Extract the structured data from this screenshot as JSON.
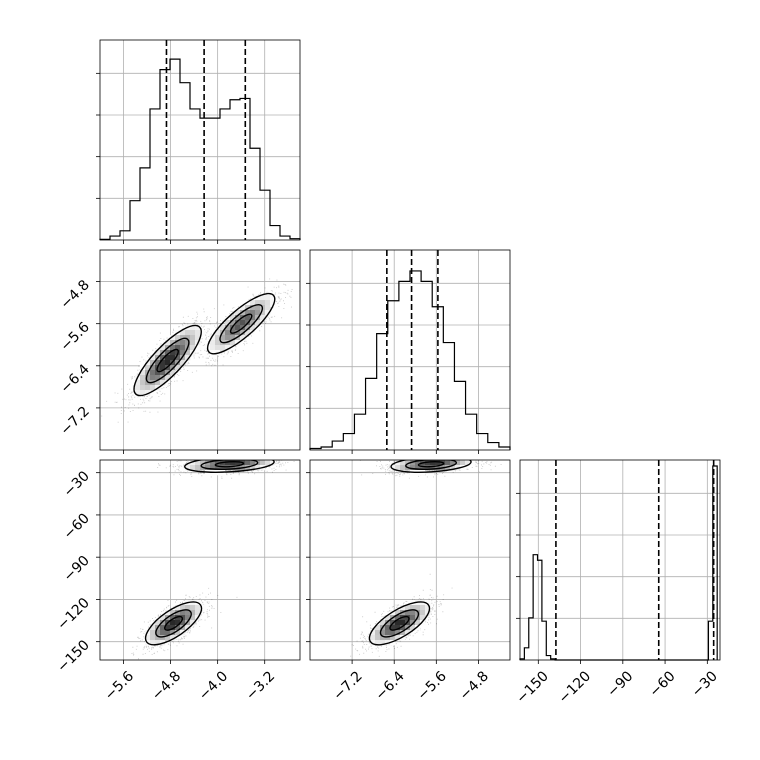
{
  "chart_data": {
    "type": "corner",
    "grid": true,
    "parameters": [
      {
        "range": [
          -6.0,
          -2.6
        ],
        "ticks": [
          -5.6,
          -4.8,
          -4.0,
          -3.2
        ],
        "tick_labels": [
          "−5.6",
          "−4.8",
          "−4.0",
          "−3.2"
        ],
        "quantiles": [
          -4.87,
          -4.23,
          -3.53
        ]
      },
      {
        "range": [
          -8.0,
          -4.2
        ],
        "ticks": [
          -7.2,
          -6.4,
          -5.6,
          -4.8
        ],
        "tick_labels": [
          "−7.2",
          "−6.4",
          "−5.6",
          "−4.8"
        ],
        "quantiles": [
          -6.54,
          -6.07,
          -5.57
        ]
      },
      {
        "range": [
          -163,
          -21
        ],
        "ticks": [
          -150,
          -120,
          -90,
          -60,
          -30
        ],
        "tick_labels": [
          "−150",
          "−120",
          "−90",
          "−60",
          "−30"
        ],
        "quantiles": [
          -137.5,
          -64.5,
          -25.5
        ]
      }
    ],
    "histograms": [
      {
        "counts": [
          0.5,
          3,
          7,
          30,
          55,
          100,
          130,
          138,
          120,
          100,
          93,
          93,
          100,
          107,
          108,
          70,
          38,
          11,
          3,
          1
        ],
        "ymax": 148
      },
      {
        "counts": [
          1,
          2,
          6,
          11,
          24,
          48,
          78,
          100,
          113,
          120,
          113,
          96,
          72,
          46,
          24,
          11,
          5,
          2
        ],
        "ymax": 130
      },
      {
        "counts": [
          1,
          11,
          38,
          95,
          90,
          35,
          4,
          1,
          0,
          0,
          0,
          0,
          0,
          0,
          0,
          0,
          0,
          0,
          0,
          0,
          0,
          0,
          0,
          0,
          0,
          0,
          0,
          0,
          0,
          0,
          0,
          0,
          0,
          0,
          0,
          0,
          0,
          0,
          0,
          0,
          0,
          0,
          0,
          35,
          175
        ],
        "hist_range": [
          -163,
          -23
        ],
        "ymax": 175
      }
    ],
    "joint_modes": [
      {
        "pair": [
          0,
          1
        ],
        "modes": [
          {
            "mean": [
              -4.85,
              -6.3
            ],
            "sd": [
              0.3,
              0.35
            ],
            "rho": 0.82,
            "weight": 0.55
          },
          {
            "mean": [
              -3.6,
              -5.6
            ],
            "sd": [
              0.3,
              0.3
            ],
            "rho": 0.82,
            "weight": 0.45
          }
        ]
      },
      {
        "pair": [
          0,
          2
        ],
        "modes": [
          {
            "mean": [
              -4.75,
              -137
            ],
            "sd": [
              0.25,
              8
            ],
            "rho": 0.7,
            "weight": 0.5
          },
          {
            "mean": [
              -3.8,
              -24
            ],
            "sd": [
              0.4,
              3
            ],
            "rho": 0.3,
            "weight": 0.5
          }
        ]
      },
      {
        "pair": [
          1,
          2
        ],
        "modes": [
          {
            "mean": [
              -6.3,
              -137
            ],
            "sd": [
              0.3,
              8
            ],
            "rho": 0.7,
            "weight": 0.5
          },
          {
            "mean": [
              -5.7,
              -24
            ],
            "sd": [
              0.4,
              3
            ],
            "rho": 0.3,
            "weight": 0.5
          }
        ]
      }
    ]
  }
}
